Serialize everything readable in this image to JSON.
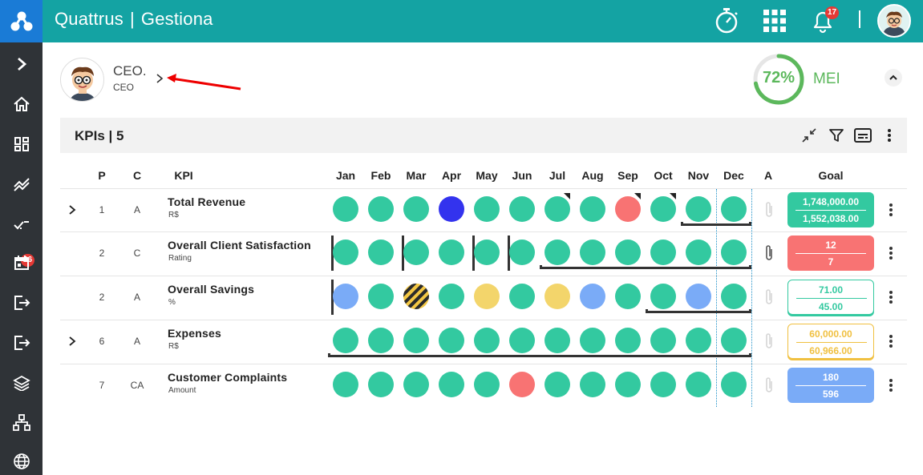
{
  "header": {
    "brand": "Quattrus",
    "separator": "|",
    "module": "Gestiona",
    "notification_count": "17",
    "icons": [
      "logo-icon",
      "stopwatch-icon",
      "apps-grid-icon",
      "bell-icon",
      "user-avatar"
    ]
  },
  "sidebar": {
    "items": [
      "chevron-right-icon",
      "home-icon",
      "dashboard-icon",
      "trend-icon",
      "approvals-icon",
      "calendar-icon",
      "logout-icon",
      "export-icon",
      "layers-icon",
      "org-chart-icon",
      "globe-icon"
    ],
    "badge": "26"
  },
  "profile": {
    "name": "CEO.",
    "role": "CEO"
  },
  "mei": {
    "percent": "72%",
    "value": 0.72,
    "label": "MEI"
  },
  "kpis": {
    "title": "KPIs | 5",
    "columns": {
      "p": "P",
      "c": "C",
      "kpi": "KPI",
      "a": "A",
      "goal": "Goal"
    },
    "months": [
      "Jan",
      "Feb",
      "Mar",
      "Apr",
      "May",
      "Jun",
      "Jul",
      "Aug",
      "Sep",
      "Oct",
      "Nov",
      "Dec"
    ],
    "rows": [
      {
        "p": "1",
        "c": "A",
        "name": "Total Revenue",
        "unit": "R$",
        "statuses": [
          "green",
          "green",
          "green",
          "blue",
          "green",
          "green",
          "green",
          "green",
          "red",
          "green",
          "green",
          "green"
        ],
        "goal_top": "1,748,000.00",
        "goal_bottom": "1,552,038.00",
        "goal_style": "green"
      },
      {
        "p": "2",
        "c": "C",
        "name": "Overall Client Satisfaction",
        "unit": "Rating",
        "statuses": [
          "green",
          "green",
          "green",
          "green",
          "green",
          "green",
          "green",
          "green",
          "green",
          "green",
          "green",
          "green"
        ],
        "goal_top": "12",
        "goal_bottom": "7",
        "goal_style": "red"
      },
      {
        "p": "2",
        "c": "A",
        "name": "Overall Savings",
        "unit": "%",
        "statuses": [
          "lblue",
          "green",
          "hatch",
          "green",
          "yellow",
          "green",
          "yellow",
          "lblue",
          "green",
          "green",
          "lblue",
          "green"
        ],
        "goal_top": "71.00",
        "goal_bottom": "45.00",
        "goal_style": "green-outline"
      },
      {
        "p": "6",
        "c": "A",
        "name": "Expenses",
        "unit": "R$",
        "statuses": [
          "green",
          "green",
          "green",
          "green",
          "green",
          "green",
          "green",
          "green",
          "green",
          "green",
          "green",
          "green"
        ],
        "goal_top": "60,000.00",
        "goal_bottom": "60,966.00",
        "goal_style": "yellow-outline"
      },
      {
        "p": "7",
        "c": "CA",
        "name": "Customer Complaints",
        "unit": "Amount",
        "statuses": [
          "green",
          "green",
          "green",
          "green",
          "green",
          "red",
          "green",
          "green",
          "green",
          "green",
          "green",
          "green"
        ],
        "goal_top": "180",
        "goal_bottom": "596",
        "goal_style": "blue"
      }
    ]
  },
  "colors": {
    "header": "#14a3a3",
    "logo": "#1a7bd6",
    "sidebar": "#2f3337",
    "green": "#33c9a0",
    "red": "#f87373",
    "blue": "#3333ee",
    "light_blue": "#7aabf7",
    "yellow": "#f3d56b",
    "mei": "#5cb85c"
  }
}
